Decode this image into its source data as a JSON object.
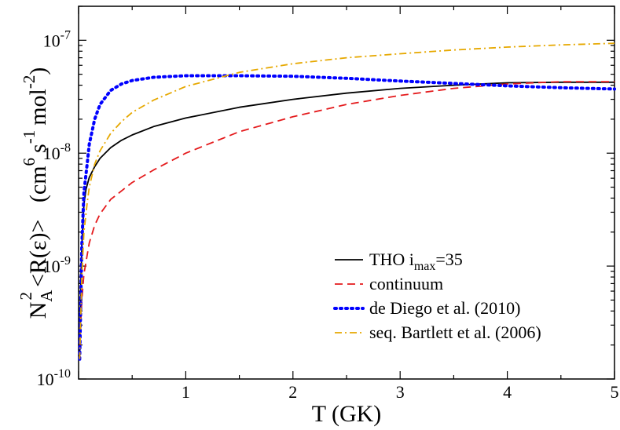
{
  "chart_data": {
    "type": "line",
    "xlabel": "T (GK)",
    "ylabel": "N_A^2 <R(ε)> (cm^6 s^-1 mol^-2)",
    "ylabel_parts": {
      "main": "N",
      "sub1": "A",
      "sup1": "2",
      "rate": "<R(ε)>",
      "unit_open": "(cm",
      "sup6": "6",
      "s": "s",
      "supm1": "-1",
      "mol": "mol",
      "supm2": "-2",
      "unit_close": ")"
    },
    "xlim": [
      0,
      5
    ],
    "ylim": [
      1e-10,
      2e-07
    ],
    "yscale": "log",
    "x_ticks": [
      {
        "value": 1,
        "label": "1"
      },
      {
        "value": 2,
        "label": "2"
      },
      {
        "value": 3,
        "label": "3"
      },
      {
        "value": 4,
        "label": "4"
      },
      {
        "value": 5,
        "label": "5"
      }
    ],
    "y_ticks": [
      {
        "value": 1e-10,
        "base": "10",
        "exp": "-10"
      },
      {
        "value": 1e-09,
        "base": "10",
        "exp": "-9"
      },
      {
        "value": 1e-08,
        "base": "10",
        "exp": "-8"
      },
      {
        "value": 1e-07,
        "base": "10",
        "exp": "-7"
      }
    ],
    "legend_position": "bottom-right",
    "series": [
      {
        "name": "THO i_max=35",
        "legend": {
          "main": "THO i",
          "sub": "max",
          "tail": "=35"
        },
        "color": "#000000",
        "dash": "",
        "x": [
          0.01,
          0.02,
          0.03,
          0.05,
          0.07,
          0.1,
          0.15,
          0.2,
          0.3,
          0.4,
          0.5,
          0.7,
          1.0,
          1.5,
          2.0,
          2.5,
          3.0,
          3.5,
          4.0,
          4.5,
          5.0
        ],
        "y": [
          1.5e-10,
          6e-10,
          1.5e-09,
          3.5e-09,
          4.8e-09,
          6.1e-09,
          7.6e-09,
          9e-09,
          1.12e-08,
          1.3e-08,
          1.45e-08,
          1.72e-08,
          2.05e-08,
          2.55e-08,
          3e-08,
          3.4e-08,
          3.75e-08,
          4e-08,
          4.2e-08,
          4.25e-08,
          4.25e-08
        ]
      },
      {
        "name": "continuum",
        "color": "#e41a1c",
        "dash": "10,6",
        "x": [
          0.01,
          0.02,
          0.03,
          0.05,
          0.1,
          0.15,
          0.2,
          0.3,
          0.5,
          0.7,
          1.0,
          1.5,
          2.0,
          2.5,
          3.0,
          3.5,
          4.0,
          4.5,
          5.0
        ],
        "y": [
          1.5e-10,
          3e-10,
          5e-10,
          8.5e-10,
          1.6e-09,
          2.3e-09,
          2.9e-09,
          3.9e-09,
          5.5e-09,
          7.1e-09,
          1e-08,
          1.55e-08,
          2.1e-08,
          2.7e-08,
          3.25e-08,
          3.75e-08,
          4.1e-08,
          4.3e-08,
          4.3e-08
        ]
      },
      {
        "name": "de Diego et al. (2010)",
        "color": "#0000ff",
        "dash": "2,5",
        "x": [
          0.01,
          0.03,
          0.05,
          0.08,
          0.1,
          0.15,
          0.2,
          0.3,
          0.4,
          0.5,
          0.7,
          1.0,
          1.5,
          2.0,
          2.5,
          3.0,
          3.5,
          4.0,
          4.5,
          5.0
        ],
        "y": [
          1.5e-10,
          1.5e-09,
          4.5e-09,
          8e-09,
          1.2e-08,
          2e-08,
          2.7e-08,
          3.6e-08,
          4.1e-08,
          4.4e-08,
          4.7e-08,
          4.85e-08,
          4.85e-08,
          4.8e-08,
          4.6e-08,
          4.35e-08,
          4.15e-08,
          3.95e-08,
          3.8e-08,
          3.7e-08
        ]
      },
      {
        "name": "seq. Bartlett et al. (2006)",
        "color": "#e6a800",
        "dash": "9,4,2,4",
        "x": [
          0.01,
          0.03,
          0.05,
          0.08,
          0.1,
          0.15,
          0.2,
          0.3,
          0.4,
          0.5,
          0.7,
          1.0,
          1.5,
          2.0,
          2.5,
          3.0,
          3.5,
          4.0,
          4.5,
          5.0
        ],
        "y": [
          1.5e-10,
          8e-10,
          2e-09,
          3.6e-09,
          5e-09,
          8e-09,
          1.05e-08,
          1.5e-08,
          1.9e-08,
          2.3e-08,
          2.95e-08,
          3.9e-08,
          5.2e-08,
          6.2e-08,
          7e-08,
          7.6e-08,
          8.2e-08,
          8.7e-08,
          9.1e-08,
          9.4e-08
        ]
      }
    ]
  }
}
